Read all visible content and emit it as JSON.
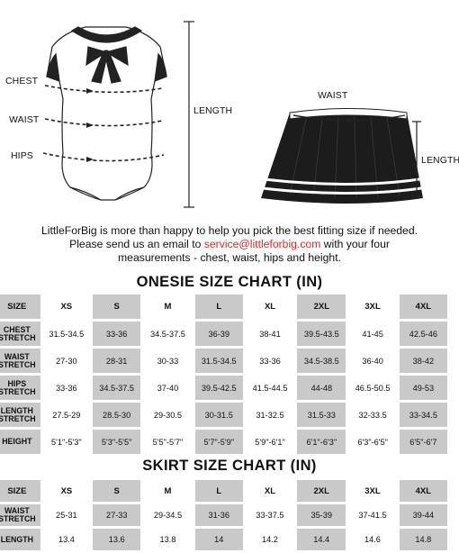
{
  "onesie_labels": {
    "chest": "CHEST",
    "waist": "WAIST",
    "hips": "HIPS",
    "length": "LENGTH"
  },
  "skirt_labels": {
    "waist": "WAIST",
    "length": "LENGTH"
  },
  "intro": {
    "line1": "LittleForBig is more than happy to help you pick the best fitting size if needed.",
    "line2_before": "Please send us an email to ",
    "email": "service@littleforbig.com",
    "line2_after": " with your four",
    "line3": "measurements - chest, waist, hips and height."
  },
  "colors": {
    "email": "#e0281e",
    "shade": "#c9c9c9"
  },
  "onesie_chart": {
    "title": "ONESIE SIZE CHART (IN)",
    "header_label": "SIZE",
    "sizes": [
      "XS",
      "S",
      "M",
      "L",
      "XL",
      "2XL",
      "3XL",
      "4XL"
    ],
    "rows": [
      {
        "label1": "CHEST",
        "label2": "STRETCH",
        "values": [
          "31.5-34.5",
          "33-36",
          "34.5-37.5",
          "36-39",
          "38-41",
          "39.5-43.5",
          "41-45",
          "42.5-46"
        ]
      },
      {
        "label1": "WAIST",
        "label2": "STRETCH",
        "values": [
          "27-30",
          "28-31",
          "30-33",
          "31.5-34.5",
          "33-36",
          "34.5-38.5",
          "36-40",
          "38-42"
        ]
      },
      {
        "label1": "HIPS",
        "label2": "STRETCH",
        "values": [
          "33-36",
          "34.5-37.5",
          "37-40",
          "39.5-42.5",
          "41.5-44.5",
          "44-48",
          "46.5-50.5",
          "49-53"
        ]
      },
      {
        "label1": "LENGTH",
        "label2": "STRETCH",
        "values": [
          "27.5-29",
          "28.5-30",
          "29-30.5",
          "30-31.5",
          "31-32.5",
          "31.5-33",
          "32-33.5",
          "33-34.5"
        ]
      },
      {
        "label1": "HEIGHT",
        "label2": "",
        "values": [
          "5'1\"-5'3\"",
          "5'3\"-5'5\"",
          "5'5\"-5'7\"",
          "5'7\"-5'9\"",
          "5'9\"-6'1\"",
          "6'1\"-6'3\"",
          "6'3\"-6'5\"",
          "6'5\"-6'7"
        ]
      }
    ]
  },
  "skirt_chart": {
    "title": "SKIRT SIZE CHART (IN)",
    "header_label": "SIZE",
    "sizes": [
      "XS",
      "S",
      "M",
      "L",
      "XL",
      "2XL",
      "3XL",
      "4XL"
    ],
    "rows": [
      {
        "label1": "WAIST",
        "label2": "STRETCH",
        "values": [
          "25-31",
          "27-33",
          "29-34.5",
          "31-36",
          "33-37.5",
          "35-39",
          "37-41.5",
          "39-44"
        ]
      },
      {
        "label1": "LENGTH",
        "label2": "",
        "values": [
          "13.4",
          "13.6",
          "13.8",
          "14",
          "14.2",
          "14.4",
          "14.6",
          "14.8"
        ]
      }
    ]
  }
}
